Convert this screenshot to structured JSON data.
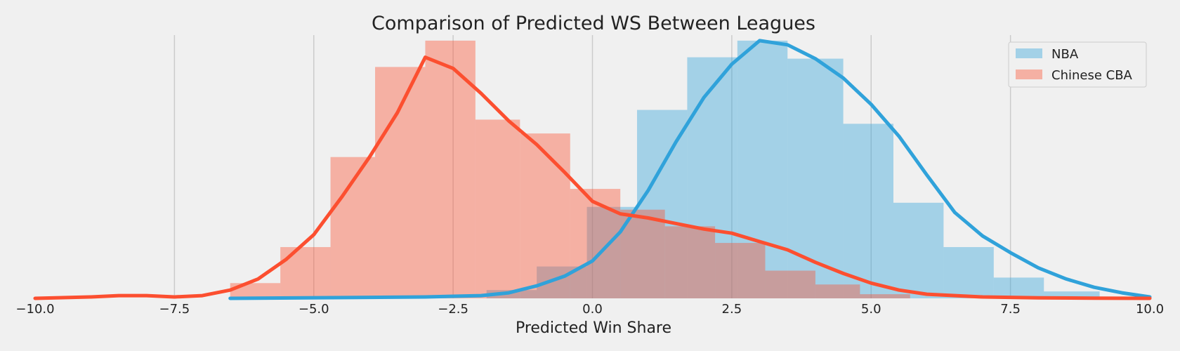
{
  "chart_data": {
    "type": "bar",
    "title": "Comparison of Predicted WS Between Leagues",
    "xlabel": "Predicted Win Share",
    "ylabel": "",
    "xlim": [
      -10.0,
      10.0
    ],
    "ylim": [
      0,
      0.19
    ],
    "x_ticks": [
      "−10.0",
      "−7.5",
      "−5.0",
      "−2.5",
      "0.0",
      "2.5",
      "5.0",
      "7.5",
      "10.0"
    ],
    "x_tick_values": [
      -10,
      -7.5,
      -5,
      -2.5,
      0,
      2.5,
      5,
      7.5,
      10
    ],
    "grid": "vertical",
    "legend": "top-right",
    "series": [
      {
        "name": "NBA",
        "color": "#30a2da",
        "histogram": {
          "bin_edges": [
            -1.9,
            -1.0,
            -0.1,
            0.8,
            1.7,
            2.6,
            3.5,
            4.5,
            5.4,
            6.3,
            7.2,
            8.1,
            9.1
          ],
          "values": [
            0.006,
            0.023,
            0.066,
            0.136,
            0.174,
            0.186,
            0.173,
            0.126,
            0.069,
            0.037,
            0.015,
            0.005
          ]
        },
        "kde": {
          "x": [
            -6.5,
            -3,
            -2,
            -1.5,
            -1,
            -0.5,
            0,
            0.5,
            1,
            1.5,
            2,
            2.5,
            3,
            3.5,
            4,
            4.5,
            5,
            5.5,
            6,
            6.5,
            7,
            7.5,
            8,
            8.5,
            9,
            9.5,
            10
          ],
          "y": [
            0,
            0.001,
            0.002,
            0.004,
            0.009,
            0.016,
            0.027,
            0.048,
            0.078,
            0.113,
            0.145,
            0.169,
            0.186,
            0.183,
            0.173,
            0.159,
            0.14,
            0.117,
            0.089,
            0.062,
            0.045,
            0.033,
            0.022,
            0.014,
            0.008,
            0.004,
            0.001
          ]
        }
      },
      {
        "name": "Chinese CBA",
        "color": "#fc4f30",
        "histogram": {
          "bin_edges": [
            -6.5,
            -5.6,
            -4.7,
            -3.9,
            -3.0,
            -2.1,
            -1.3,
            -0.4,
            0.5,
            1.3,
            2.2,
            3.1,
            4.0,
            4.8,
            5.7
          ],
          "values": [
            0.011,
            0.037,
            0.102,
            0.167,
            0.186,
            0.129,
            0.119,
            0.079,
            0.064,
            0.052,
            0.04,
            0.02,
            0.01,
            0.003
          ]
        },
        "kde": {
          "x": [
            -10,
            -9,
            -8.5,
            -8,
            -7.5,
            -7,
            -6.5,
            -6,
            -5.5,
            -5,
            -4.5,
            -4,
            -3.5,
            -3,
            -2.5,
            -2,
            -1.5,
            -1,
            -0.5,
            0,
            0.5,
            1,
            1.5,
            2,
            2.5,
            3,
            3.5,
            4,
            4.5,
            5,
            5.5,
            6,
            7,
            8,
            9,
            10
          ],
          "y": [
            0,
            0.001,
            0.002,
            0.002,
            0.001,
            0.002,
            0.006,
            0.014,
            0.028,
            0.046,
            0.073,
            0.102,
            0.134,
            0.174,
            0.166,
            0.148,
            0.128,
            0.111,
            0.091,
            0.07,
            0.061,
            0.058,
            0.054,
            0.05,
            0.047,
            0.041,
            0.035,
            0.026,
            0.018,
            0.011,
            0.006,
            0.003,
            0.001,
            0.0004,
            0.0001,
            0
          ]
        }
      }
    ]
  }
}
